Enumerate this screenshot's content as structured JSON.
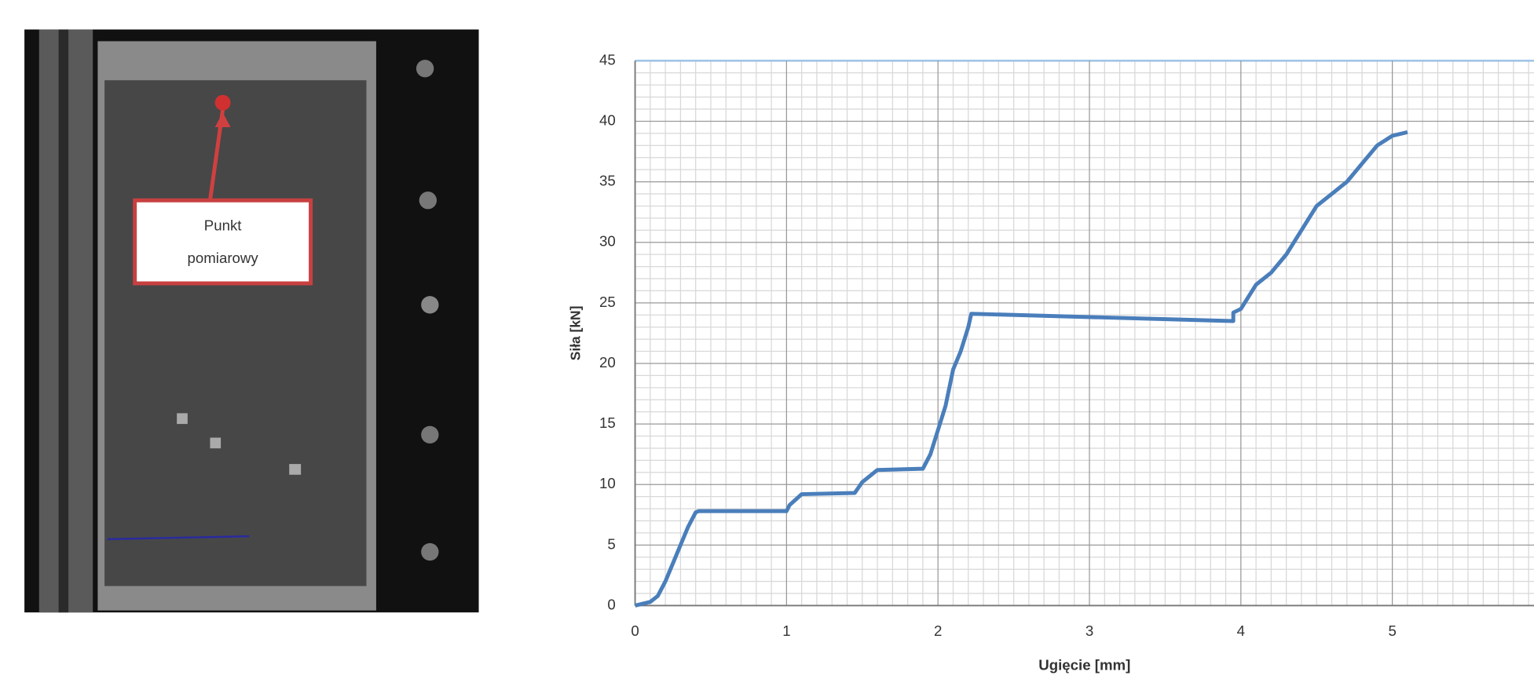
{
  "chart_data": {
    "type": "line",
    "x_label": "Ugięcie [mm]",
    "y_label": "Siła [kN]",
    "x": [
      0,
      0.1,
      0.15,
      0.2,
      0.25,
      0.3,
      0.35,
      0.4,
      0.42,
      1.0,
      1.02,
      1.1,
      1.45,
      1.5,
      1.6,
      1.9,
      1.95,
      2.0,
      2.05,
      2.1,
      2.15,
      2.2,
      2.22,
      3.95,
      3.95,
      4.0,
      4.1,
      4.2,
      4.3,
      4.4,
      4.5,
      4.6,
      4.7,
      4.8,
      4.9,
      5.0,
      5.1
    ],
    "values": [
      0,
      0.3,
      0.8,
      2,
      3.5,
      5,
      6.5,
      7.7,
      7.8,
      7.8,
      8.3,
      9.2,
      9.3,
      10.2,
      11.2,
      11.3,
      12.5,
      14.5,
      16.5,
      19.5,
      21,
      23,
      24.1,
      23.5,
      24.2,
      24.5,
      26.5,
      27.5,
      29,
      31,
      33,
      34,
      35,
      36.5,
      38,
      38.8,
      39.1
    ],
    "color": "#4a7ebb",
    "xlim": [
      0,
      6
    ],
    "xticks": [
      0,
      1,
      2,
      3,
      4,
      5
    ],
    "ylim": [
      0,
      45
    ],
    "yticks": [
      0,
      5,
      10,
      15,
      20,
      25,
      30,
      35,
      40,
      45
    ],
    "grid": true
  },
  "photo": {
    "label": [
      "Punkt",
      "pomiarowy"
    ]
  }
}
